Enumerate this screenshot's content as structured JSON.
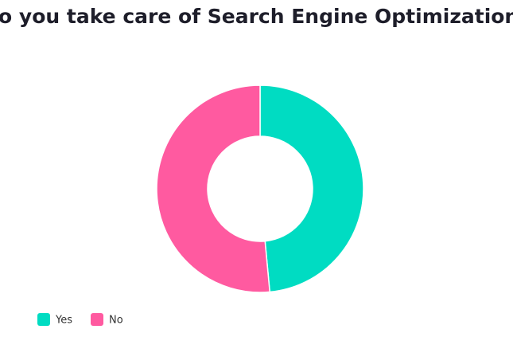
{
  "chart_data": {
    "type": "donut",
    "title": "Do you take care of Search Engine Optimization?",
    "categories": [
      "Yes",
      "No"
    ],
    "values": [
      48.5,
      51.5
    ],
    "colors": [
      "#00dcc2",
      "#ff5aa0"
    ],
    "legend": "bottom-left"
  }
}
